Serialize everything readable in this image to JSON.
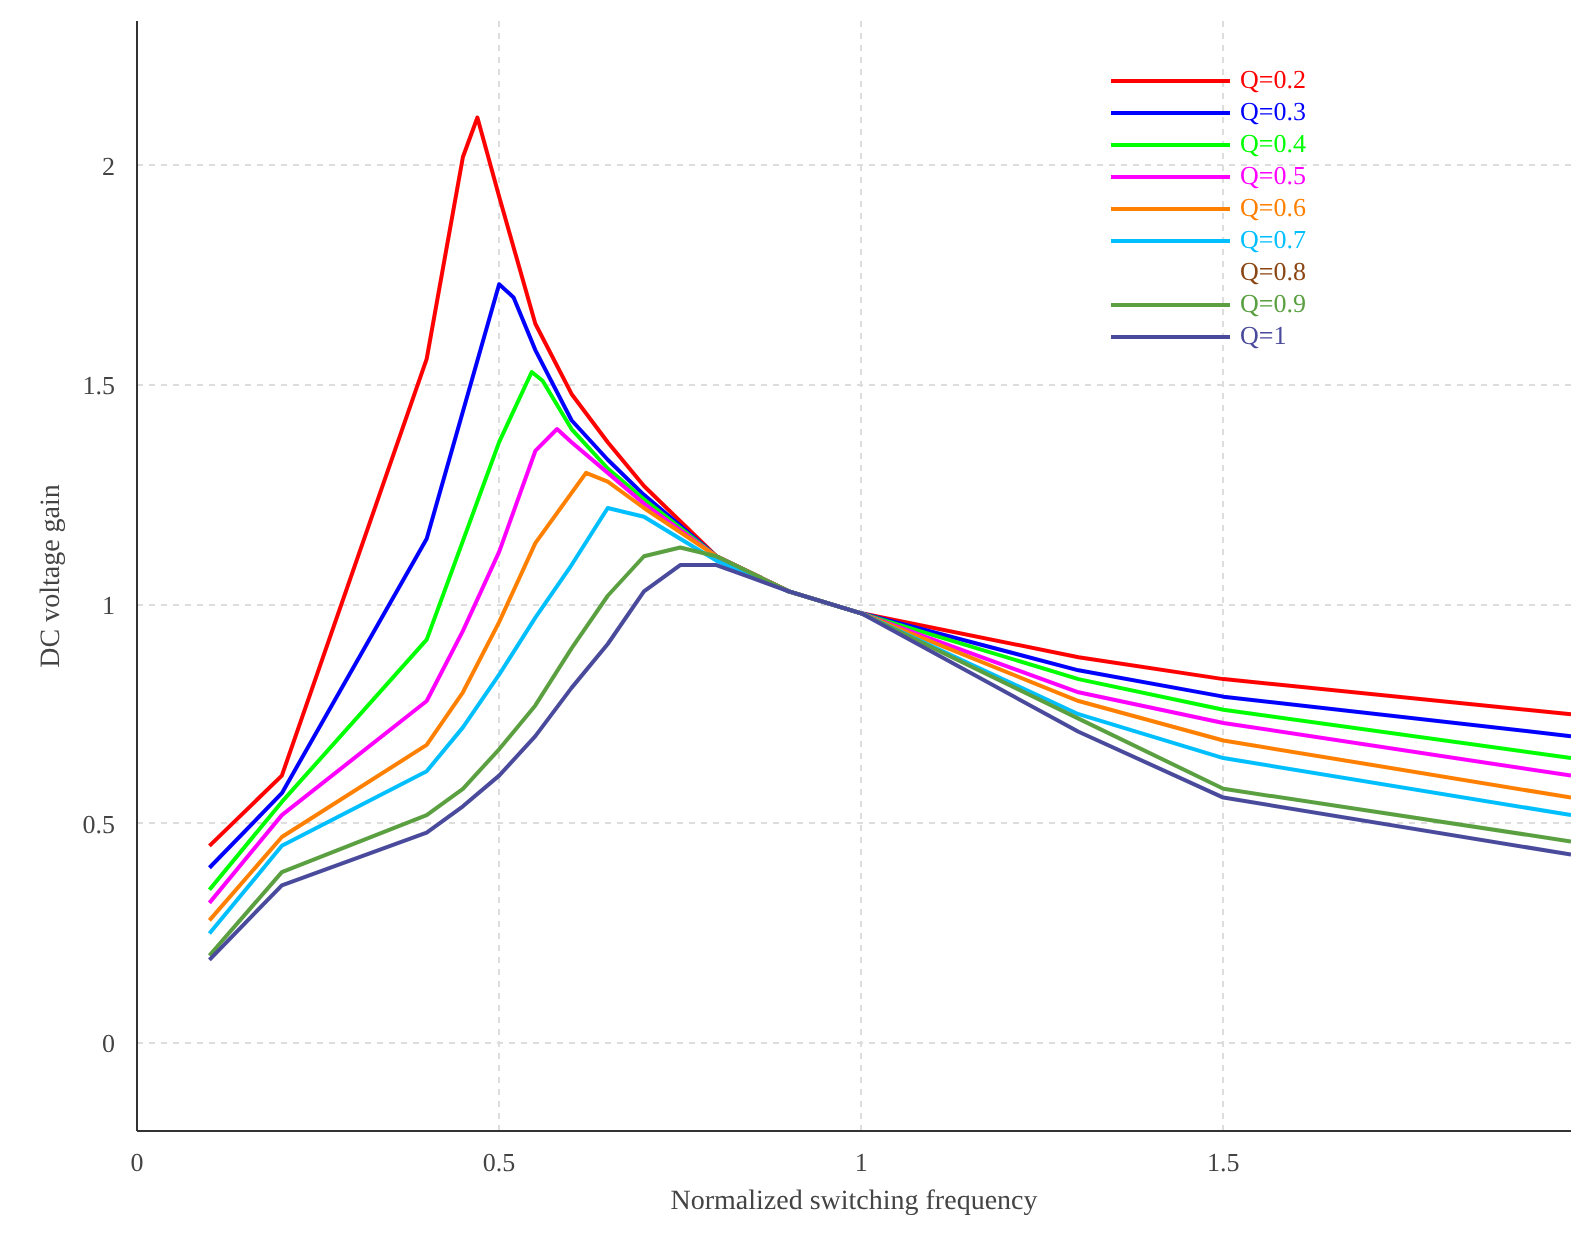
{
  "chart_data": {
    "type": "line",
    "xlabel": "Normalized switching frequency",
    "ylabel": "DC voltage gain",
    "xlim": [
      0,
      1.98
    ],
    "ylim": [
      -0.2,
      2.33
    ],
    "xticks": [
      0,
      0.5,
      1,
      1.5
    ],
    "yticks": [
      0,
      0.5,
      1,
      1.5,
      2
    ],
    "grid": true,
    "legend": "top right",
    "line_style": "solid",
    "marker": "none",
    "series": [
      {
        "name": "Q=0.2",
        "color": "#ff0000",
        "x": [
          0.1,
          0.2,
          0.4,
          0.45,
          0.47,
          0.5,
          0.55,
          0.6,
          0.65,
          0.7,
          0.8,
          0.9,
          1.0,
          1.3,
          1.5,
          1.98
        ],
        "values": [
          0.45,
          0.61,
          1.56,
          2.02,
          2.11,
          1.93,
          1.64,
          1.48,
          1.37,
          1.27,
          1.11,
          1.03,
          0.98,
          0.88,
          0.83,
          0.75
        ]
      },
      {
        "name": "Q=0.3",
        "color": "#0000ff",
        "x": [
          0.1,
          0.2,
          0.4,
          0.5,
          0.52,
          0.55,
          0.6,
          0.65,
          0.7,
          0.8,
          0.9,
          1.0,
          1.3,
          1.5,
          1.98
        ],
        "values": [
          0.4,
          0.57,
          1.15,
          1.73,
          1.7,
          1.58,
          1.42,
          1.33,
          1.25,
          1.11,
          1.03,
          0.98,
          0.85,
          0.79,
          0.7
        ]
      },
      {
        "name": "Q=0.4",
        "color": "#00ff00",
        "x": [
          0.1,
          0.2,
          0.4,
          0.5,
          0.545,
          0.56,
          0.6,
          0.65,
          0.7,
          0.8,
          0.9,
          1.0,
          1.3,
          1.5,
          1.98
        ],
        "values": [
          0.35,
          0.55,
          0.92,
          1.37,
          1.53,
          1.51,
          1.4,
          1.31,
          1.24,
          1.11,
          1.03,
          0.98,
          0.83,
          0.76,
          0.65
        ]
      },
      {
        "name": "Q=0.5",
        "color": "#ff00ff",
        "x": [
          0.1,
          0.2,
          0.4,
          0.45,
          0.5,
          0.55,
          0.58,
          0.6,
          0.65,
          0.7,
          0.8,
          0.9,
          1.0,
          1.3,
          1.5,
          1.98
        ],
        "values": [
          0.32,
          0.52,
          0.78,
          0.94,
          1.12,
          1.35,
          1.4,
          1.37,
          1.3,
          1.23,
          1.11,
          1.03,
          0.98,
          0.8,
          0.73,
          0.61
        ]
      },
      {
        "name": "Q=0.6",
        "color": "#ff8000",
        "x": [
          0.1,
          0.2,
          0.4,
          0.45,
          0.5,
          0.55,
          0.62,
          0.65,
          0.7,
          0.8,
          0.9,
          1.0,
          1.3,
          1.5,
          1.98
        ],
        "values": [
          0.28,
          0.47,
          0.68,
          0.8,
          0.96,
          1.14,
          1.3,
          1.28,
          1.22,
          1.11,
          1.03,
          0.98,
          0.78,
          0.69,
          0.56
        ]
      },
      {
        "name": "Q=0.7",
        "color": "#00bfff",
        "x": [
          0.1,
          0.2,
          0.4,
          0.45,
          0.5,
          0.55,
          0.6,
          0.65,
          0.7,
          0.75,
          0.8,
          0.9,
          1.0,
          1.3,
          1.5,
          1.98
        ],
        "values": [
          0.25,
          0.45,
          0.62,
          0.72,
          0.84,
          0.97,
          1.09,
          1.22,
          1.2,
          1.15,
          1.1,
          1.03,
          0.98,
          0.75,
          0.65,
          0.52
        ]
      },
      {
        "name": "Q=0.8",
        "color": "#8b4513"
      },
      {
        "name": "Q=0.9",
        "color": "#5aa040",
        "x": [
          0.1,
          0.2,
          0.4,
          0.45,
          0.5,
          0.55,
          0.6,
          0.65,
          0.7,
          0.75,
          0.8,
          0.9,
          1.0,
          1.3,
          1.5,
          1.98
        ],
        "values": [
          0.2,
          0.39,
          0.52,
          0.58,
          0.67,
          0.77,
          0.9,
          1.02,
          1.11,
          1.13,
          1.11,
          1.03,
          0.98,
          0.74,
          0.58,
          0.46
        ]
      },
      {
        "name": "Q=1",
        "color": "#4a4a9c",
        "x": [
          0.1,
          0.2,
          0.4,
          0.45,
          0.5,
          0.55,
          0.6,
          0.65,
          0.7,
          0.75,
          0.8,
          0.85,
          0.9,
          1.0,
          1.3,
          1.5,
          1.98
        ],
        "values": [
          0.19,
          0.36,
          0.48,
          0.54,
          0.61,
          0.7,
          0.81,
          0.91,
          1.03,
          1.09,
          1.09,
          1.06,
          1.03,
          0.98,
          0.71,
          0.56,
          0.43
        ]
      }
    ]
  }
}
